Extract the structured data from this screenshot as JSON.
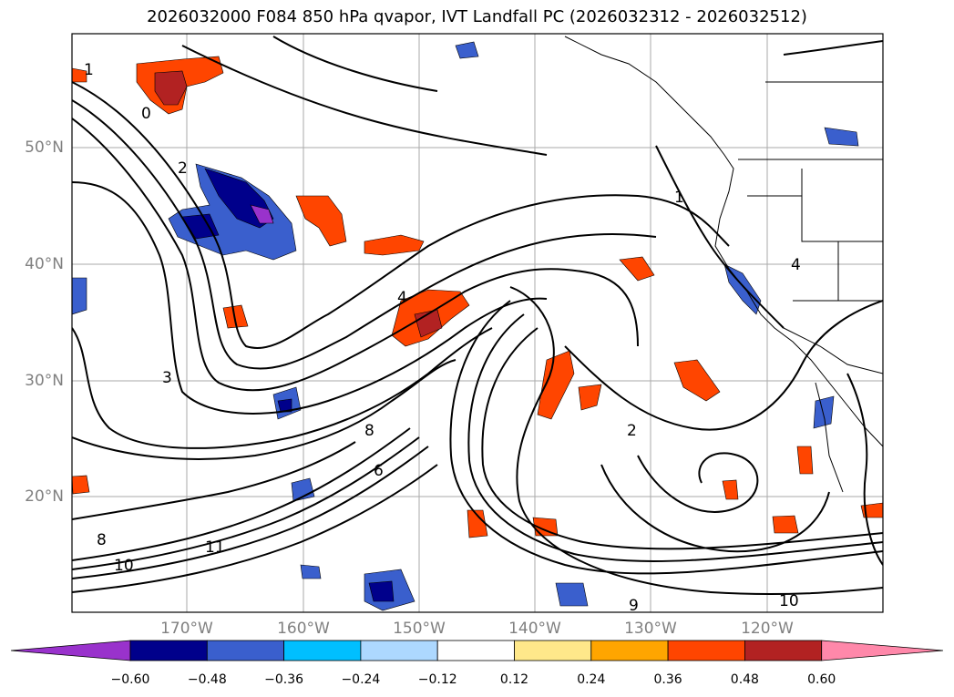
{
  "title": "2026032000 F084 850 hPa qvapor, IVT Landfall PC (2026032312 - 2026032512)",
  "lat_labels": [
    "50°N",
    "40°N",
    "30°N",
    "20°N"
  ],
  "lon_labels": [
    "170°W",
    "160°W",
    "150°W",
    "140°W",
    "130°W",
    "120°W"
  ],
  "contour_labels": [
    "1",
    "0",
    "2",
    "4",
    "8",
    "6",
    "3",
    "11",
    "10",
    "9",
    "1",
    "2",
    "4",
    "8",
    "10"
  ],
  "colorbar": {
    "colors": [
      "#9932cc",
      "#00008b",
      "#3a5fcd",
      "#00bfff",
      "#add8ff",
      "#ffffff",
      "#ffe88a",
      "#ffa500",
      "#ff4500",
      "#b22222",
      "#ff88aa"
    ],
    "ticks": [
      "−0.60",
      "−0.48",
      "−0.36",
      "−0.24",
      "−0.12",
      "0.12",
      "0.24",
      "0.36",
      "0.48",
      "0.60"
    ]
  }
}
